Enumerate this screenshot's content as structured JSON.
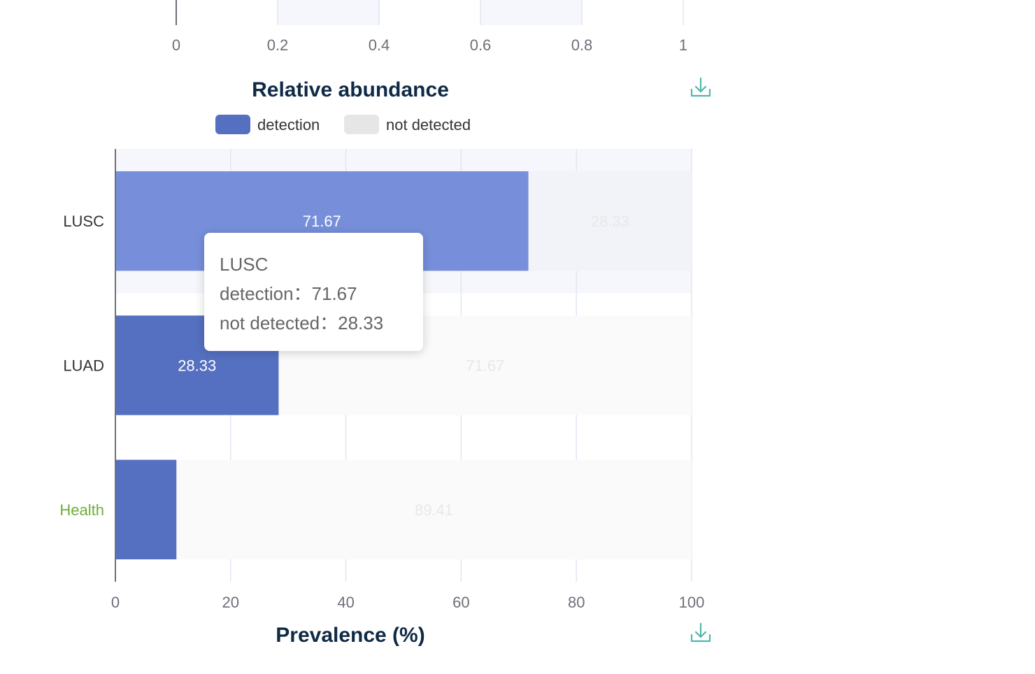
{
  "colors": {
    "detection": "#5570c1",
    "detection_hover": "#778fda",
    "not_detected": "#e6e6e6",
    "axis_title": "#0f2a46",
    "tick": "#6e7079",
    "health_label": "#6fad3a",
    "category_label": "#333333",
    "download_icon": "#4fb7ae"
  },
  "top_axis": {
    "ticks": [
      "0",
      "0.2",
      "0.4",
      "0.6",
      "0.8",
      "1"
    ]
  },
  "relative_abundance": {
    "title": "Relative abundance",
    "download_icon": "download-icon"
  },
  "legend": {
    "items": [
      {
        "label": "detection",
        "color": "#5570c1"
      },
      {
        "label": "not detected",
        "color": "#e6e6e6"
      }
    ]
  },
  "prevalence": {
    "title": "Prevalence (%)",
    "download_icon": "download-icon"
  },
  "chart_data": {
    "type": "bar",
    "orientation": "horizontal",
    "stacked": true,
    "categories": [
      "LUSC",
      "LUAD",
      "Health"
    ],
    "series": [
      {
        "name": "detection",
        "values": [
          71.67,
          28.33,
          10.59
        ],
        "labels": [
          "71.67",
          "28.33",
          ""
        ]
      },
      {
        "name": "not detected",
        "values": [
          28.33,
          71.67,
          89.41
        ],
        "labels": [
          "28.33",
          "71.67",
          "89.41"
        ]
      }
    ],
    "xlabel": "Prevalence (%)",
    "xlim": [
      0,
      100
    ],
    "xticks": [
      "0",
      "20",
      "40",
      "60",
      "80",
      "100"
    ],
    "grid": true,
    "legend_position": "top",
    "highlighted_category": "LUSC"
  },
  "tooltip": {
    "title": "LUSC",
    "line1": "detection：71.67",
    "line2": "not detected：28.33"
  }
}
